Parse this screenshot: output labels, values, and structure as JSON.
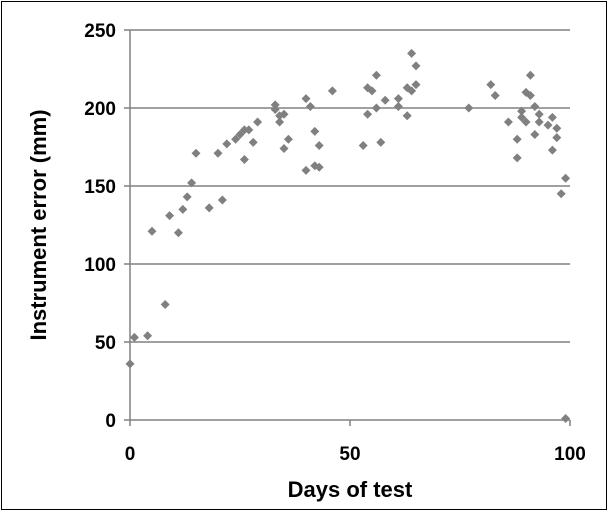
{
  "chart_data": {
    "type": "scatter",
    "title": "",
    "xlabel": "Days of test",
    "ylabel": "Instrument error (mm)",
    "xlim": [
      0,
      100
    ],
    "ylim": [
      0,
      250
    ],
    "x_ticks": [
      "0",
      "50",
      "100"
    ],
    "y_ticks": [
      "0",
      "50",
      "100",
      "150",
      "200",
      "250"
    ],
    "grid": "horizontal",
    "marker_color": "#808080",
    "marker": "diamond",
    "series": [
      {
        "points": [
          [
            0,
            36
          ],
          [
            1,
            53
          ],
          [
            4,
            54
          ],
          [
            5,
            121
          ],
          [
            8,
            74
          ],
          [
            9,
            131
          ],
          [
            11,
            120
          ],
          [
            12,
            135
          ],
          [
            13,
            143
          ],
          [
            14,
            152
          ],
          [
            15,
            171
          ],
          [
            18,
            136
          ],
          [
            20,
            171
          ],
          [
            21,
            141
          ],
          [
            22,
            177
          ],
          [
            24,
            180
          ],
          [
            25,
            183
          ],
          [
            26,
            186
          ],
          [
            26,
            167
          ],
          [
            27,
            186
          ],
          [
            28,
            178
          ],
          [
            29,
            191
          ],
          [
            33,
            202
          ],
          [
            33,
            199
          ],
          [
            34,
            195
          ],
          [
            34,
            191
          ],
          [
            35,
            174
          ],
          [
            35,
            196
          ],
          [
            36,
            180
          ],
          [
            40,
            206
          ],
          [
            40,
            160
          ],
          [
            41,
            201
          ],
          [
            42,
            185
          ],
          [
            42,
            163
          ],
          [
            43,
            162
          ],
          [
            43,
            176
          ],
          [
            46,
            211
          ],
          [
            53,
            176
          ],
          [
            54,
            213
          ],
          [
            54,
            196
          ],
          [
            55,
            211
          ],
          [
            56,
            221
          ],
          [
            56,
            200
          ],
          [
            57,
            178
          ],
          [
            58,
            205
          ],
          [
            61,
            206
          ],
          [
            61,
            201
          ],
          [
            63,
            195
          ],
          [
            63,
            213
          ],
          [
            64,
            211
          ],
          [
            64,
            235
          ],
          [
            65,
            227
          ],
          [
            65,
            215
          ],
          [
            77,
            200
          ],
          [
            82,
            215
          ],
          [
            83,
            208
          ],
          [
            86,
            191
          ],
          [
            88,
            180
          ],
          [
            88,
            168
          ],
          [
            89,
            198
          ],
          [
            89,
            194
          ],
          [
            90,
            210
          ],
          [
            90,
            191
          ],
          [
            91,
            221
          ],
          [
            91,
            208
          ],
          [
            92,
            183
          ],
          [
            92,
            201
          ],
          [
            93,
            191
          ],
          [
            93,
            196
          ],
          [
            95,
            189
          ],
          [
            96,
            173
          ],
          [
            96,
            194
          ],
          [
            97,
            187
          ],
          [
            97,
            181
          ],
          [
            98,
            145
          ],
          [
            99,
            155
          ],
          [
            99,
            1
          ]
        ]
      }
    ]
  }
}
